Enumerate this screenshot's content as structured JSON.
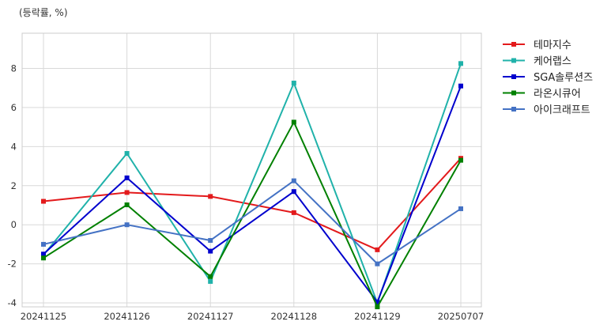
{
  "chart_data": {
    "type": "line",
    "title": "",
    "unit_label": "(등락률, %)",
    "xlabel": "",
    "ylabel": "",
    "categories": [
      "20241125",
      "20241126",
      "20241127",
      "20241128",
      "20241129",
      "20250707"
    ],
    "ylim": [
      -4.2,
      9.8
    ],
    "yticks": [
      -4,
      -2,
      0,
      2,
      4,
      6,
      8
    ],
    "grid": true,
    "legend_position": "right-top-outside",
    "series": [
      {
        "name": "테마지수",
        "color": "#e31a1c",
        "values": [
          1.2,
          1.65,
          1.45,
          0.62,
          -1.28,
          3.4
        ]
      },
      {
        "name": "케어랩스",
        "color": "#20b2aa",
        "values": [
          -1.55,
          3.65,
          -2.9,
          7.25,
          -4.0,
          8.25
        ]
      },
      {
        "name": "SGA솔루션즈",
        "color": "#0000cd",
        "values": [
          -1.5,
          2.4,
          -1.35,
          1.7,
          -3.95,
          7.1
        ]
      },
      {
        "name": "라온시큐어",
        "color": "#008000",
        "values": [
          -1.7,
          1.02,
          -2.65,
          5.25,
          -4.2,
          3.3
        ]
      },
      {
        "name": "아이크래프트",
        "color": "#4472c4",
        "values": [
          -1.0,
          0.0,
          -0.8,
          2.25,
          -2.0,
          0.82
        ]
      }
    ]
  }
}
